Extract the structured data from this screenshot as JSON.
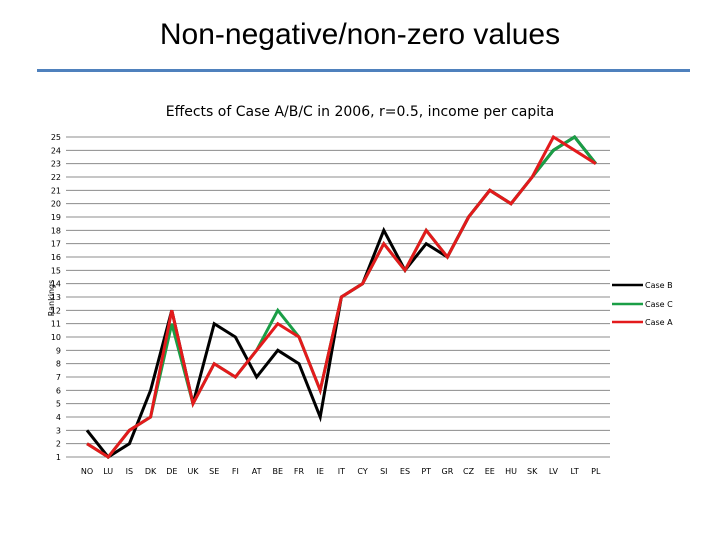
{
  "slide": {
    "title": "Non-negative/non-zero values"
  },
  "chart_data": {
    "type": "line",
    "title": "Effects of Case A/B/C in 2006, r=0.5, income per capita",
    "xlabel": "",
    "ylabel": "Rankings",
    "ylim": [
      1,
      25
    ],
    "yticks": [
      1,
      2,
      3,
      4,
      5,
      6,
      7,
      8,
      9,
      10,
      11,
      12,
      13,
      14,
      15,
      16,
      17,
      18,
      19,
      20,
      21,
      22,
      23,
      24,
      25
    ],
    "categories": [
      "NO",
      "LU",
      "IS",
      "DK",
      "DE",
      "UK",
      "SE",
      "FI",
      "AT",
      "BE",
      "FR",
      "IE",
      "IT",
      "CY",
      "SI",
      "ES",
      "PT",
      "GR",
      "CZ",
      "EE",
      "HU",
      "SK",
      "LV",
      "LT",
      "PL"
    ],
    "grid": true,
    "legend_position": "right",
    "series": [
      {
        "name": "Case B",
        "color": "#000000",
        "values": [
          3,
          1,
          2,
          6,
          12,
          5,
          11,
          10,
          7,
          9,
          8,
          4,
          13,
          14,
          18,
          15,
          17,
          16,
          19,
          21,
          20,
          22,
          24,
          25,
          23
        ]
      },
      {
        "name": "Case C",
        "color": "#1a9e46",
        "values": [
          2,
          1,
          3,
          4,
          11,
          5,
          8,
          7,
          9,
          12,
          10,
          6,
          13,
          14,
          17,
          15,
          18,
          16,
          19,
          21,
          20,
          22,
          24,
          25,
          23
        ]
      },
      {
        "name": "Case A",
        "color": "#e31a1c",
        "values": [
          2,
          1,
          3,
          4,
          12,
          5,
          8,
          7,
          9,
          11,
          10,
          6,
          13,
          14,
          17,
          15,
          18,
          16,
          19,
          21,
          20,
          22,
          25,
          24,
          23
        ]
      }
    ]
  }
}
